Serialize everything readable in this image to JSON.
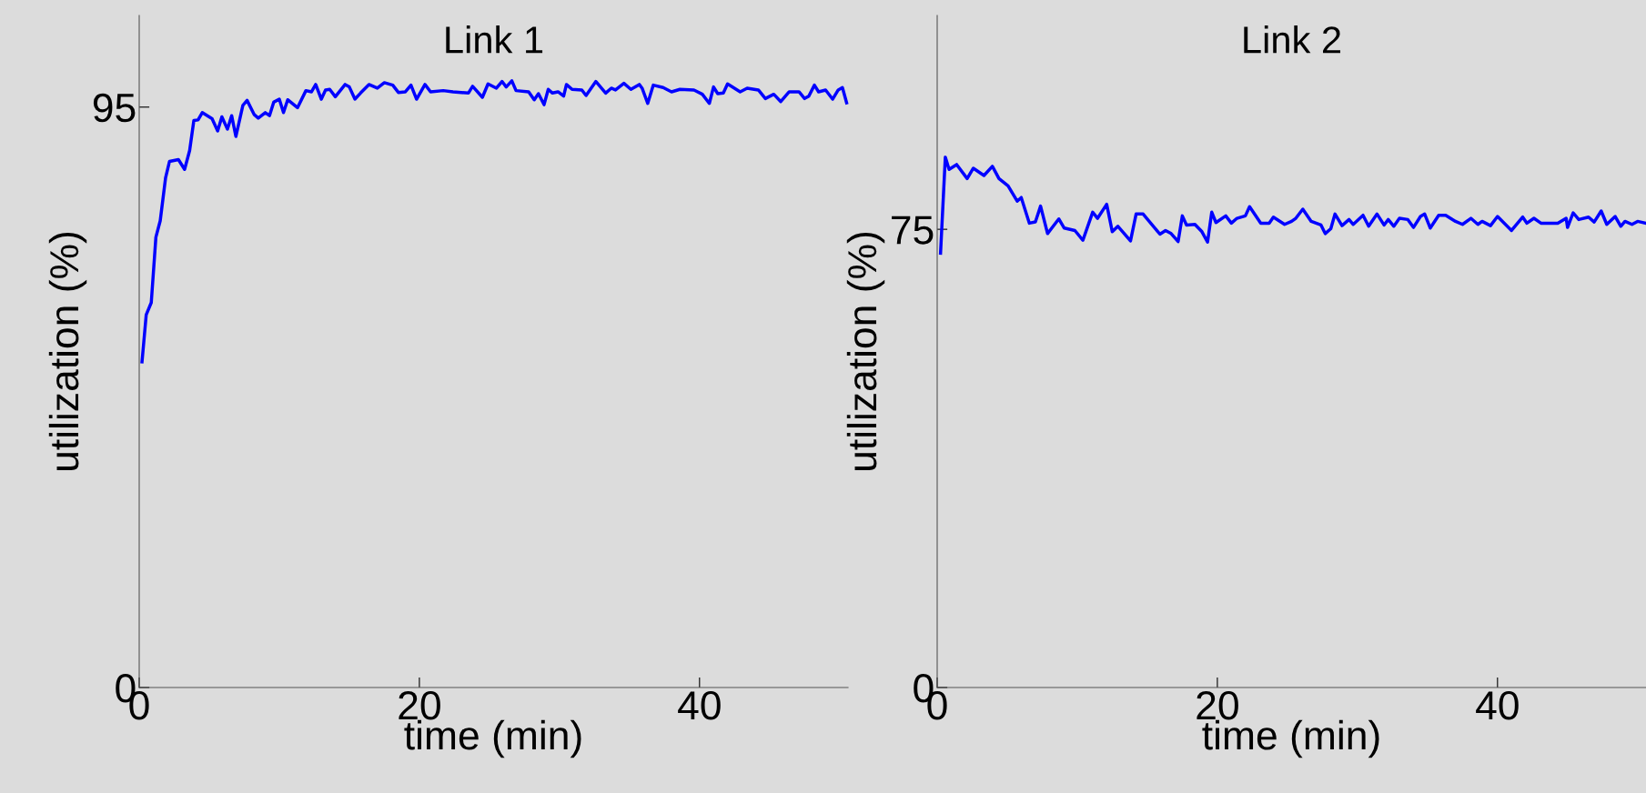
{
  "chart_data": [
    {
      "type": "line",
      "title": "Link 1",
      "xlabel": "time (min)",
      "ylabel": "utilization (%)",
      "xlim": [
        0,
        50.6
      ],
      "xticks": [
        0,
        20,
        40
      ],
      "ylim": [
        0,
        110
      ],
      "yticks": [
        0,
        95
      ],
      "marker": "none",
      "line_style": "solid",
      "series": [
        {
          "color": "#0000ff",
          "x": [
            0.2,
            0.5,
            0.86,
            1.19,
            1.5,
            1.88,
            2.16,
            2.8,
            3.24,
            3.6,
            3.9,
            4.2,
            4.5,
            5.2,
            5.6,
            5.9,
            6.3,
            6.6,
            6.9,
            7.4,
            7.7,
            8.2,
            8.5,
            9.0,
            9.3,
            9.6,
            10.0,
            10.3,
            10.6,
            11.3,
            11.9,
            12.3,
            12.6,
            13.0,
            13.3,
            13.6,
            14.0,
            14.7,
            15.0,
            15.4,
            15.8,
            16.4,
            17.0,
            17.5,
            18.1,
            18.5,
            19.0,
            19.4,
            19.8,
            20.4,
            20.8,
            21.7,
            22.4,
            23.0,
            23.5,
            23.8,
            24.5,
            24.9,
            25.5,
            25.9,
            26.2,
            26.6,
            26.9,
            27.8,
            28.2,
            28.5,
            28.9,
            29.2,
            29.5,
            29.9,
            30.3,
            30.5,
            30.9,
            31.6,
            31.9,
            32.6,
            33.3,
            33.7,
            34.0,
            34.6,
            35.1,
            35.7,
            35.9,
            36.3,
            36.7,
            37.4,
            38.0,
            38.6,
            39.6,
            40.2,
            40.7,
            41.0,
            41.3,
            41.7,
            42.0,
            42.9,
            43.4,
            44.2,
            44.7,
            45.3,
            45.8,
            46.4,
            47.1,
            47.5,
            47.8,
            48.2,
            48.5,
            49.0,
            49.5,
            49.9,
            50.2,
            50.5
          ],
          "values": [
            53.3,
            61.0,
            63.0,
            73.7,
            76.4,
            83.4,
            86.1,
            86.4,
            84.8,
            87.9,
            92.8,
            92.9,
            94.1,
            93.1,
            91.1,
            93.4,
            91.4,
            93.6,
            90.2,
            95.3,
            96.1,
            93.8,
            93.2,
            94.1,
            93.6,
            95.8,
            96.3,
            94.1,
            96.2,
            94.9,
            97.7,
            97.5,
            98.7,
            96.3,
            97.8,
            97.9,
            96.7,
            98.7,
            98.3,
            96.3,
            97.3,
            98.7,
            98.1,
            99.0,
            98.6,
            97.4,
            97.5,
            98.6,
            96.3,
            98.7,
            97.5,
            97.7,
            97.5,
            97.4,
            97.3,
            98.4,
            96.6,
            98.8,
            98.1,
            99.2,
            98.3,
            99.3,
            97.7,
            97.5,
            96.2,
            97.2,
            95.4,
            97.9,
            97.3,
            97.5,
            96.8,
            98.7,
            97.9,
            97.8,
            96.9,
            99.2,
            97.3,
            98.1,
            97.8,
            98.9,
            97.9,
            98.7,
            98.1,
            95.6,
            98.6,
            98.2,
            97.5,
            97.9,
            97.8,
            97.1,
            95.6,
            98.3,
            97.2,
            97.3,
            98.8,
            97.5,
            98.1,
            97.8,
            96.4,
            97.1,
            95.9,
            97.5,
            97.5,
            96.4,
            96.8,
            98.6,
            97.5,
            97.8,
            96.3,
            97.8,
            98.2,
            95.7
          ]
        }
      ]
    },
    {
      "type": "line",
      "title": "Link 2",
      "xlabel": "time (min)",
      "ylabel": "utilization (%)",
      "xlim": [
        0,
        50.6
      ],
      "xticks": [
        0,
        20,
        40
      ],
      "ylim": [
        0,
        110
      ],
      "yticks": [
        0,
        75
      ],
      "marker": "none",
      "line_style": "solid",
      "series": [
        {
          "color": "#0000ff",
          "x": [
            0.24,
            0.58,
            0.85,
            1.39,
            2.14,
            2.58,
            3.34,
            3.94,
            4.41,
            5.06,
            5.71,
            6.0,
            6.58,
            7.01,
            7.38,
            7.88,
            8.68,
            9.07,
            9.83,
            10.4,
            11.1,
            11.45,
            12.1,
            12.5,
            12.9,
            13.8,
            14.2,
            14.7,
            15.9,
            16.3,
            16.7,
            17.2,
            17.5,
            17.8,
            18.4,
            18.9,
            19.3,
            19.6,
            19.9,
            20.6,
            21.0,
            21.4,
            22.0,
            22.3,
            23.1,
            23.7,
            24.0,
            24.8,
            25.3,
            25.6,
            26.1,
            26.7,
            27.4,
            27.7,
            28.1,
            28.4,
            28.9,
            29.4,
            29.7,
            30.4,
            30.8,
            31.4,
            31.9,
            32.2,
            32.6,
            33.0,
            33.6,
            34.0,
            34.5,
            34.8,
            35.2,
            35.8,
            36.3,
            37.0,
            37.5,
            38.1,
            38.6,
            38.9,
            39.5,
            40.0,
            41.0,
            41.8,
            42.1,
            42.6,
            43.1,
            44.3,
            44.9,
            45.0,
            45.4,
            45.8,
            46.5,
            46.9,
            47.4,
            47.8,
            48.4,
            48.8,
            49.1,
            49.6,
            50.0,
            50.6
          ],
          "values": [
            71.1,
            86.8,
            84.8,
            85.6,
            83.3,
            85.0,
            83.8,
            85.3,
            83.3,
            82.1,
            79.6,
            80.2,
            76.0,
            76.2,
            78.8,
            74.3,
            76.7,
            75.2,
            74.8,
            73.2,
            77.8,
            76.8,
            79.1,
            74.6,
            75.5,
            73.1,
            77.5,
            77.5,
            74.2,
            74.8,
            74.3,
            73.0,
            77.2,
            75.7,
            75.8,
            74.6,
            72.9,
            77.8,
            76.1,
            77.2,
            76.0,
            76.8,
            77.2,
            78.7,
            76.0,
            76.0,
            77.0,
            75.8,
            76.3,
            76.8,
            78.3,
            76.3,
            75.7,
            74.3,
            75.1,
            77.5,
            75.6,
            76.6,
            75.8,
            77.3,
            75.5,
            77.5,
            75.7,
            76.6,
            75.5,
            76.8,
            76.6,
            75.3,
            77.1,
            77.5,
            75.2,
            77.3,
            77.3,
            76.3,
            75.8,
            76.8,
            75.8,
            76.3,
            75.6,
            77.1,
            74.8,
            77.0,
            76.0,
            76.8,
            76.0,
            76.0,
            76.8,
            75.3,
            77.7,
            76.6,
            77.0,
            76.2,
            78.0,
            75.8,
            77.1,
            75.5,
            76.3,
            75.8,
            76.3,
            76.0
          ]
        }
      ]
    }
  ]
}
